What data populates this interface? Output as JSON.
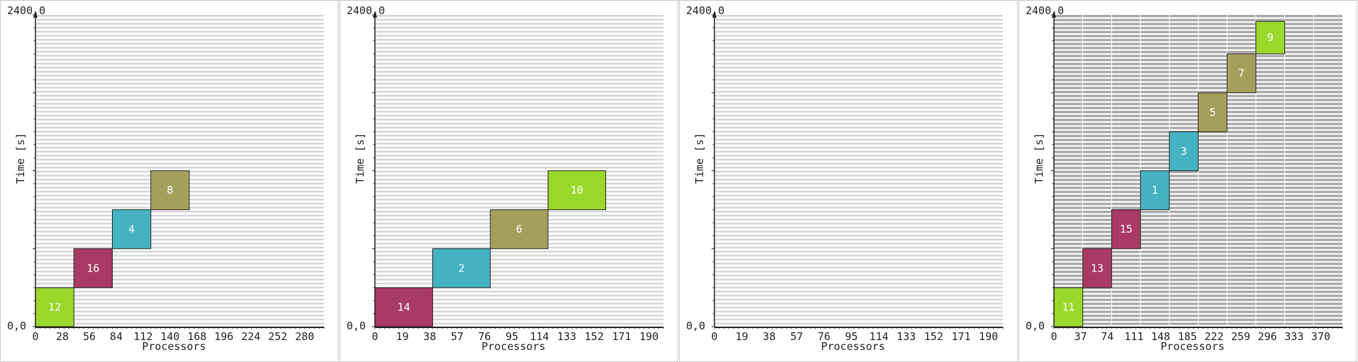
{
  "chart_data": [
    {
      "type": "gantt",
      "ylabel": "Time [s]",
      "xlabel": "Processors",
      "ytop_label": "2400,0",
      "yzero_label": "0,0",
      "x_ticks": [
        "0",
        "28",
        "56",
        "84",
        "112",
        "140",
        "168",
        "196",
        "224",
        "252",
        "280"
      ],
      "tick_step": 28,
      "processors": 300,
      "ylim": [
        0,
        2400
      ],
      "row_style": "light",
      "jobs": [
        {
          "id": "12",
          "proc_start": 0,
          "proc_end": 40,
          "t_start": 0,
          "t_end": 300,
          "color": "#9ad82c"
        },
        {
          "id": "16",
          "proc_start": 40,
          "proc_end": 80,
          "t_start": 300,
          "t_end": 600,
          "color": "#a93a63"
        },
        {
          "id": "4",
          "proc_start": 80,
          "proc_end": 120,
          "t_start": 600,
          "t_end": 900,
          "color": "#45b3c2"
        },
        {
          "id": "8",
          "proc_start": 120,
          "proc_end": 160,
          "t_start": 900,
          "t_end": 1200,
          "color": "#a59f5e"
        }
      ]
    },
    {
      "type": "gantt",
      "ylabel": "Time [s]",
      "xlabel": "Processors",
      "ytop_label": "2400,0",
      "yzero_label": "0,0",
      "x_ticks": [
        "0",
        "19",
        "38",
        "57",
        "76",
        "95",
        "114",
        "133",
        "152",
        "171",
        "190"
      ],
      "tick_step": 19,
      "processors": 200,
      "ylim": [
        0,
        2400
      ],
      "row_style": "light",
      "jobs": [
        {
          "id": "14",
          "proc_start": 0,
          "proc_end": 40,
          "t_start": 0,
          "t_end": 300,
          "color": "#a93a63"
        },
        {
          "id": "2",
          "proc_start": 40,
          "proc_end": 80,
          "t_start": 300,
          "t_end": 600,
          "color": "#45b3c2"
        },
        {
          "id": "6",
          "proc_start": 80,
          "proc_end": 120,
          "t_start": 600,
          "t_end": 900,
          "color": "#a59f5e"
        },
        {
          "id": "10",
          "proc_start": 120,
          "proc_end": 160,
          "t_start": 900,
          "t_end": 1200,
          "color": "#9ad82c"
        }
      ]
    },
    {
      "type": "gantt",
      "ylabel": "Time [s]",
      "xlabel": "Processors",
      "ytop_label": "2400,0",
      "yzero_label": "0,0",
      "x_ticks": [
        "0",
        "19",
        "38",
        "57",
        "76",
        "95",
        "114",
        "133",
        "152",
        "171",
        "190"
      ],
      "tick_step": 19,
      "processors": 200,
      "ylim": [
        0,
        2400
      ],
      "row_style": "light",
      "jobs": []
    },
    {
      "type": "gantt",
      "ylabel": "Time [s]",
      "xlabel": "Processors",
      "ytop_label": "2400,0",
      "yzero_label": "0,0",
      "x_ticks": [
        "0",
        "37",
        "74",
        "111",
        "148",
        "185",
        "222",
        "259",
        "296",
        "333",
        "370"
      ],
      "tick_step": 37,
      "processors": 400,
      "ylim": [
        0,
        2400
      ],
      "row_style": "dark",
      "jobs": [
        {
          "id": "11",
          "proc_start": 0,
          "proc_end": 40,
          "t_start": 0,
          "t_end": 300,
          "color": "#9ad82c"
        },
        {
          "id": "13",
          "proc_start": 40,
          "proc_end": 80,
          "t_start": 300,
          "t_end": 600,
          "color": "#a93a63"
        },
        {
          "id": "15",
          "proc_start": 80,
          "proc_end": 120,
          "t_start": 600,
          "t_end": 900,
          "color": "#a93a63"
        },
        {
          "id": "1",
          "proc_start": 120,
          "proc_end": 160,
          "t_start": 900,
          "t_end": 1200,
          "color": "#45b3c2"
        },
        {
          "id": "3",
          "proc_start": 160,
          "proc_end": 200,
          "t_start": 1200,
          "t_end": 1500,
          "color": "#45b3c2"
        },
        {
          "id": "5",
          "proc_start": 200,
          "proc_end": 240,
          "t_start": 1500,
          "t_end": 1800,
          "color": "#a59f5e"
        },
        {
          "id": "7",
          "proc_start": 240,
          "proc_end": 280,
          "t_start": 1800,
          "t_end": 2100,
          "color": "#a59f5e"
        },
        {
          "id": "9",
          "proc_start": 280,
          "proc_end": 320,
          "t_start": 2100,
          "t_end": 2350,
          "color": "#9ad82c"
        }
      ]
    }
  ]
}
